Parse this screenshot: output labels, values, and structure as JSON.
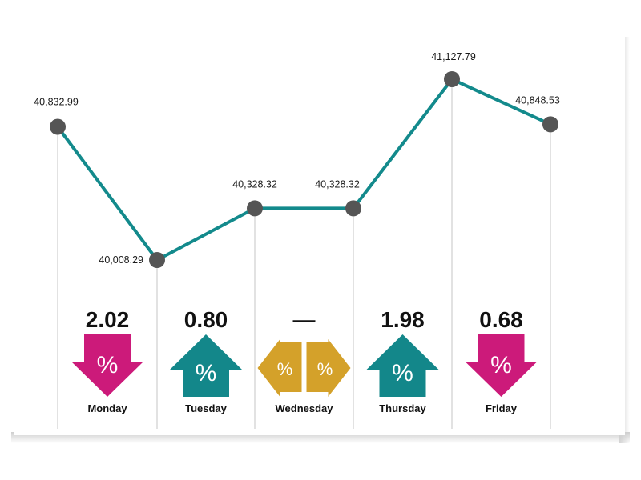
{
  "colors": {
    "line": "#138a8c",
    "point": "#555555",
    "down": "#cc1a7a",
    "up": "#13878a",
    "flat": "#d4a12a",
    "vline": "#c4c4c4"
  },
  "chart_data": {
    "type": "line",
    "categories": [
      "Monday",
      "Tuesday",
      "Wednesday",
      "Thursday",
      "Friday"
    ],
    "points": [
      {
        "label": "40,832.99",
        "value": 40832.99
      },
      {
        "label": "40,008.29",
        "value": 40008.29
      },
      {
        "label": "40,328.32",
        "value": 40328.32
      },
      {
        "label": "40,328.32",
        "value": 40328.32
      },
      {
        "label": "41,127.79",
        "value": 41127.79
      },
      {
        "label": "40,848.53",
        "value": 40848.53
      }
    ],
    "changes": [
      {
        "day": "Monday",
        "value": "2.02",
        "direction": "down",
        "symbol": "%"
      },
      {
        "day": "Tuesday",
        "value": "0.80",
        "direction": "up",
        "symbol": "%"
      },
      {
        "day": "Wednesday",
        "value": "—",
        "direction": "flat",
        "symbol": "%"
      },
      {
        "day": "Thursday",
        "value": "1.98",
        "direction": "up",
        "symbol": "%"
      },
      {
        "day": "Friday",
        "value": "0.68",
        "direction": "down",
        "symbol": "%"
      }
    ],
    "ylim": [
      39600,
      41400
    ],
    "grid": false,
    "legend": "none"
  }
}
